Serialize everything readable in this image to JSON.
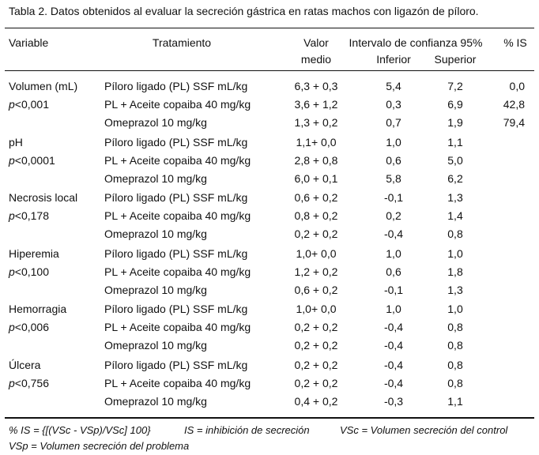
{
  "caption": "Tabla 2. Datos obtenidos al evaluar la secreción gástrica en ratas machos con ligazón de píloro.",
  "headers": {
    "variable": "Variable",
    "tratamiento": "Tratamiento",
    "valor_line1": "Valor",
    "valor_line2": "medio",
    "intervalo": "Intervalo de confianza 95%",
    "inferior": "Inferior",
    "superior": "Superior",
    "is": "% IS"
  },
  "groups": [
    {
      "variable": "Volumen (mL)",
      "p_prefix": "p",
      "p_value": "<0,001",
      "rows": [
        {
          "tratamiento": "Píloro ligado (PL) SSF mL/kg",
          "valor": "6,3 + 0,3",
          "inferior": "5,4",
          "superior": "7,2",
          "is": "0,0"
        },
        {
          "tratamiento": "PL + Aceite copaiba 40 mg/kg",
          "valor": "3,6 + 1,2",
          "inferior": "0,3",
          "superior": "6,9",
          "is": "42,8"
        },
        {
          "tratamiento": "Omeprazol 10 mg/kg",
          "valor": "1,3 + 0,2",
          "inferior": "0,7",
          "superior": "1,9",
          "is": "79,4"
        }
      ]
    },
    {
      "variable": "pH",
      "p_prefix": "p",
      "p_value": "<0,0001",
      "rows": [
        {
          "tratamiento": "Píloro ligado (PL) SSF mL/kg",
          "valor": "1,1+ 0,0",
          "inferior": "1,0",
          "superior": "1,1",
          "is": ""
        },
        {
          "tratamiento": "PL + Aceite copaiba 40 mg/kg",
          "valor": "2,8 + 0,8",
          "inferior": "0,6",
          "superior": "5,0",
          "is": ""
        },
        {
          "tratamiento": "Omeprazol 10 mg/kg",
          "valor": "6,0 + 0,1",
          "inferior": "5,8",
          "superior": "6,2",
          "is": ""
        }
      ]
    },
    {
      "variable": "Necrosis local",
      "p_prefix": "p",
      "p_value": "<0,178",
      "rows": [
        {
          "tratamiento": "Píloro ligado (PL) SSF mL/kg",
          "valor": "0,6 + 0,2",
          "inferior": "-0,1",
          "superior": "1,3",
          "is": ""
        },
        {
          "tratamiento": "PL + Aceite copaiba 40 mg/kg",
          "valor": "0,8 + 0,2",
          "inferior": "0,2",
          "superior": "1,4",
          "is": ""
        },
        {
          "tratamiento": "Omeprazol 10 mg/kg",
          "valor": "0,2 + 0,2",
          "inferior": "-0,4",
          "superior": "0,8",
          "is": ""
        }
      ]
    },
    {
      "variable": "Hiperemia",
      "p_prefix": "p",
      "p_value": "<0,100",
      "rows": [
        {
          "tratamiento": "Píloro ligado (PL) SSF mL/kg",
          "valor": "1,0+ 0,0",
          "inferior": "1,0",
          "superior": "1,0",
          "is": ""
        },
        {
          "tratamiento": "PL + Aceite copaiba 40 mg/kg",
          "valor": "1,2 + 0,2",
          "inferior": "0,6",
          "superior": "1,8",
          "is": ""
        },
        {
          "tratamiento": "Omeprazol 10 mg/kg",
          "valor": "0,6 + 0,2",
          "inferior": "-0,1",
          "superior": "1,3",
          "is": ""
        }
      ]
    },
    {
      "variable": "Hemorragia",
      "p_prefix": "p",
      "p_value": "<0,006",
      "rows": [
        {
          "tratamiento": "Píloro ligado (PL) SSF mL/kg",
          "valor": "1,0+ 0,0",
          "inferior": "1,0",
          "superior": "1,0",
          "is": ""
        },
        {
          "tratamiento": "PL + Aceite copaiba 40 mg/kg",
          "valor": "0,2 + 0,2",
          "inferior": "-0,4",
          "superior": "0,8",
          "is": ""
        },
        {
          "tratamiento": "Omeprazol 10 mg/kg",
          "valor": "0,2 + 0,2",
          "inferior": "-0,4",
          "superior": "0,8",
          "is": ""
        }
      ]
    },
    {
      "variable": "Úlcera",
      "p_prefix": "p",
      "p_value": "<0,756",
      "rows": [
        {
          "tratamiento": "Píloro ligado (PL) SSF mL/kg",
          "valor": "0,2 + 0,2",
          "inferior": "-0,4",
          "superior": "0,8",
          "is": ""
        },
        {
          "tratamiento": "PL + Aceite copaiba 40 mg/kg",
          "valor": "0,2 + 0,2",
          "inferior": "-0,4",
          "superior": "0,8",
          "is": ""
        },
        {
          "tratamiento": "Omeprazol 10 mg/kg",
          "valor": "0,4 + 0,2",
          "inferior": "-0,3",
          "superior": "1,1",
          "is": ""
        }
      ]
    }
  ],
  "footnotes": {
    "formula": "% IS = {[(VSc - VSp)/VSc] 100}",
    "is_def": "IS = inhibición de secreción",
    "vsc_def": "VSc = Volumen secreción del control",
    "vsp_def": "VSp = Volumen secreción del problema"
  }
}
